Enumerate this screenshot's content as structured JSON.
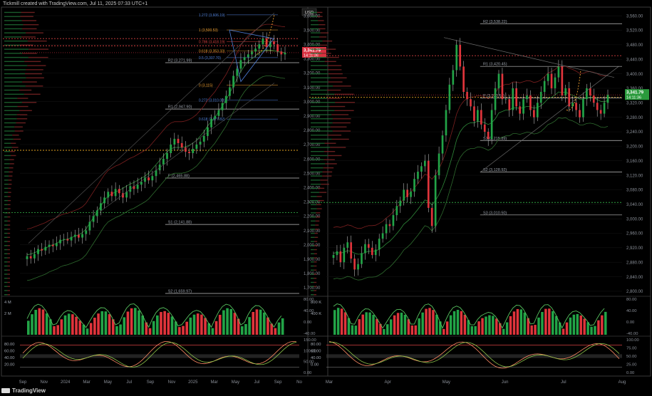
{
  "header": {
    "caption": "Tickmill created with TradingView.com, Jul 11, 2025 07:33 UTC+1",
    "currency": "USD"
  },
  "footer": {
    "logo_text": "TradingView"
  },
  "colors": {
    "bull": "#22a447",
    "bear": "#e0343b",
    "grid": "#121212",
    "panel_border": "#3a3a3a",
    "pivot_line": "#bfbfbf",
    "dotted_red": "#d64040",
    "dotted_orange": "#e0a020",
    "dotted_green": "#2fa040",
    "fib_blue": "#4e7fd8",
    "fib_orange": "#f0a030",
    "volume_line": "#57c15e",
    "stoch_k": "#ff8a65",
    "stoch_d": "#8bc34a",
    "price_badge_bg": "#d83040",
    "price_badge_green": "#2a9a3c"
  },
  "chart_data": [
    {
      "type": "candlestick",
      "panel": "left-price",
      "timeframe_hint": "weekly",
      "x_tick_labels": [
        "Sep",
        "Nov",
        "2024",
        "Mar",
        "May",
        "Jul",
        "Sep",
        "Nov",
        "2025",
        "Mar",
        "May",
        "Jul",
        "Sep",
        "No"
      ],
      "y_tick_labels": [
        "3,600.00",
        "3,500.00",
        "3,400.00",
        "3,300.00",
        "3,200.00",
        "3,100.00",
        "3,000.00",
        "2,900.00",
        "2,800.00",
        "2,700.00",
        "2,600.00",
        "2,500.00",
        "2,400.00",
        "2,300.00",
        "2,200.00",
        "2,100.00",
        "2,000.00",
        "1,900.00",
        "1,800.00",
        "1,700.00"
      ],
      "ylim": [
        1650,
        3650
      ],
      "current_price": "3,341.79",
      "countdown": "14:11:36",
      "price_line": 3341.79,
      "levels": [
        {
          "label": "R2 (3,271.99)",
          "value": 3271.99
        },
        {
          "label": "R1 (2,947.90)",
          "value": 2947.9
        },
        {
          "label": "P (2,465.88)",
          "value": 2465.88
        },
        {
          "label": "S1 (2,141.88)",
          "value": 2141.88
        },
        {
          "label": "S2 (1,659.97)",
          "value": 1659.97
        }
      ],
      "fib_levels": [
        {
          "label": "1.272 (3,606.19)",
          "value": 3606.19,
          "color": "blue"
        },
        {
          "label": "1 (3,500.53)",
          "value": 3500.53,
          "color": "orange"
        },
        {
          "label": "0.786 (3,418.19)",
          "value": 3418.19,
          "color": "red"
        },
        {
          "label": "0.618 (3,353.33)",
          "value": 3353.33,
          "color": "orange"
        },
        {
          "label": "0.5 (3,307.70)",
          "value": 3307.7,
          "color": "blue"
        },
        {
          "label": "0 (3,115)",
          "value": 3115,
          "color": "orange"
        },
        {
          "label": "0.272 (3,010.00)",
          "value": 3010.0,
          "color": "blue"
        },
        {
          "label": "0.618 (2,877.82)",
          "value": 2877.82,
          "color": "blue"
        }
      ],
      "horizontal_dotted": [
        {
          "value": 3440,
          "color": "red"
        },
        {
          "value": 3390,
          "color": "red"
        },
        {
          "value": 2660,
          "color": "orange"
        },
        {
          "value": 2225,
          "color": "green"
        }
      ],
      "closes": [
        1920,
        1905,
        1935,
        1970,
        1960,
        1985,
        2000,
        1990,
        2010,
        2035,
        2040,
        2030,
        2055,
        2070,
        2050,
        2075,
        2100,
        2160,
        2200,
        2240,
        2290,
        2330,
        2370,
        2340,
        2390,
        2360,
        2330,
        2370,
        2410,
        2390,
        2420,
        2440,
        2470,
        2450,
        2480,
        2520,
        2560,
        2600,
        2640,
        2700,
        2740,
        2710,
        2680,
        2650,
        2640,
        2670,
        2700,
        2720,
        2760,
        2820,
        2880,
        2900,
        2940,
        2990,
        3040,
        3100,
        3180,
        3230,
        3290,
        3310,
        3330,
        3350,
        3370,
        3400,
        3440,
        3380,
        3420,
        3400,
        3350,
        3330,
        3342
      ],
      "ema_fast": [
        1930,
        1935,
        1945,
        1955,
        1965,
        1975,
        1990,
        2000,
        2010,
        2025,
        2035,
        2040,
        2050,
        2060,
        2070,
        2085,
        2110,
        2150,
        2190,
        2230,
        2270,
        2310,
        2340,
        2355,
        2370,
        2380,
        2395,
        2410,
        2425,
        2435,
        2450,
        2465,
        2480,
        2500,
        2530,
        2560,
        2590,
        2620,
        2650,
        2670,
        2680,
        2680,
        2680,
        2685,
        2695,
        2710,
        2730,
        2760,
        2790,
        2830,
        2860,
        2890,
        2930,
        2970,
        3010,
        3060,
        3110,
        3160,
        3210,
        3250,
        3280,
        3300,
        3320,
        3340,
        3355,
        3360,
        3360,
        3355,
        3350,
        3345,
        3342
      ],
      "volume_profile_note": "horizontal volume-by-price histogram on left edge"
    },
    {
      "type": "candlestick",
      "panel": "right-price",
      "timeframe_hint": "daily",
      "x_tick_labels": [
        "Mar",
        "Apr",
        "May",
        "Jun",
        "Jul",
        "Aug"
      ],
      "y_tick_labels": [
        "3,560.00",
        "3,520.00",
        "3,480.00",
        "3,440.00",
        "3,400.00",
        "3,360.00",
        "3,320.00",
        "3,280.00",
        "3,240.00",
        "3,200.00",
        "3,160.00",
        "3,120.00",
        "3,080.00",
        "3,040.00",
        "3,000.00",
        "2,960.00",
        "2,920.00",
        "2,880.00",
        "2,840.00",
        "2,800.00"
      ],
      "ylim": [
        2790,
        3580
      ],
      "current_price": "3,341.79",
      "countdown": "14:11:36",
      "price_line": 3341.79,
      "levels": [
        {
          "label": "R2 (3,538.22)",
          "value": 3538.22
        },
        {
          "label": "R1 (3,420.45)",
          "value": 3420.45
        },
        {
          "label": "P (3,333.64)",
          "value": 3333.64
        },
        {
          "label": "S1 (3,215.89)",
          "value": 3215.89
        },
        {
          "label": "S2 (3,128.92)",
          "value": 3128.92
        },
        {
          "label": "S3 (3,010.50)",
          "value": 3010.5
        }
      ],
      "horizontal_dotted": [
        {
          "value": 3450,
          "color": "red"
        },
        {
          "value": 3335,
          "color": "orange"
        },
        {
          "value": 3045,
          "color": "green"
        }
      ],
      "closes": [
        2900,
        2910,
        2880,
        2920,
        2935,
        2890,
        2860,
        2875,
        2905,
        2930,
        2920,
        2900,
        2915,
        2945,
        2960,
        2985,
        2980,
        3010,
        3035,
        3050,
        3080,
        3060,
        3075,
        3110,
        3130,
        3145,
        3160,
        3030,
        2980,
        3120,
        3180,
        3230,
        3300,
        3370,
        3410,
        3480,
        3420,
        3350,
        3330,
        3310,
        3270,
        3300,
        3260,
        3240,
        3220,
        3300,
        3360,
        3400,
        3330,
        3330,
        3300,
        3360,
        3310,
        3290,
        3330,
        3340,
        3300,
        3280,
        3320,
        3350,
        3380,
        3400,
        3360,
        3390,
        3420,
        3340,
        3360,
        3310,
        3320,
        3300,
        3280,
        3330,
        3360,
        3340,
        3320,
        3300,
        3290,
        3320,
        3342
      ],
      "ema_fast": [
        2905,
        2907,
        2905,
        2908,
        2912,
        2910,
        2905,
        2902,
        2903,
        2907,
        2910,
        2910,
        2911,
        2916,
        2922,
        2931,
        2938,
        2948,
        2959,
        2971,
        2985,
        2993,
        3002,
        3014,
        3026,
        3039,
        3052,
        3048,
        3038,
        3050,
        3067,
        3088,
        3114,
        3147,
        3180,
        3218,
        3240,
        3253,
        3261,
        3265,
        3265,
        3269,
        3268,
        3265,
        3260,
        3265,
        3276,
        3292,
        3296,
        3300,
        3300,
        3306,
        3306,
        3304,
        3307,
        3310,
        3309,
        3305,
        3307,
        3312,
        3321,
        3331,
        3335,
        3341,
        3350,
        3348,
        3350,
        3344,
        3341,
        3336,
        3330,
        3330,
        3334,
        3335,
        3333,
        3329,
        3324,
        3323,
        3326
      ],
      "triangle_note": "descending resistance from ~3500 and ascending support from ~3130 converging into July"
    },
    {
      "type": "bar",
      "panel": "left-volume",
      "y_tick_labels": [
        "80.00",
        "40.00",
        "0.00",
        "-40.00"
      ],
      "y_left_labels": [
        "4 M",
        "2 M"
      ],
      "note": "weekly volume bars green/red with green smoothed line"
    },
    {
      "type": "bar",
      "panel": "right-volume",
      "y_tick_labels": [
        "80.00",
        "40.00",
        "0.00",
        "-40.00"
      ],
      "y_left_labels": [
        "800 K",
        "400 K"
      ],
      "note": "daily volume bars green/red with green smoothed line"
    },
    {
      "type": "line",
      "panel": "left-stochastic",
      "y_tick_labels": [
        "150.00",
        "100.00",
        "50.00",
        "0.00"
      ],
      "y_left_labels": [
        "80.00",
        "60.00",
        "40.00",
        "20.00"
      ],
      "overbought": 80,
      "oversold": 20
    },
    {
      "type": "line",
      "panel": "right-stochastic",
      "y_tick_labels": [
        "100.00",
        "75.00",
        "50.00",
        "25.00",
        "0.00"
      ],
      "y_left_labels": [
        "80.00",
        "60.00",
        "40.00",
        "0.00"
      ],
      "overbought": 80,
      "oversold": 20
    }
  ]
}
